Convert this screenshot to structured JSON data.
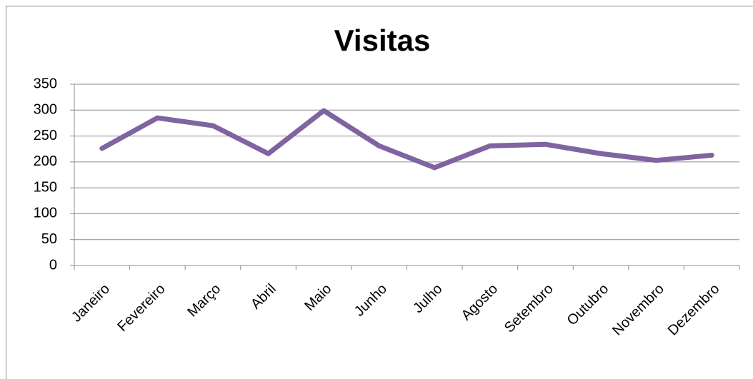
{
  "chart_data": {
    "type": "line",
    "title": "Visitas",
    "categories": [
      "Janeiro",
      "Fevereiro",
      "Março",
      "Abril",
      "Maio",
      "Junho",
      "Julho",
      "Agosto",
      "Setembro",
      "Outubro",
      "Novembro",
      "Dezembro"
    ],
    "values": [
      226,
      285,
      270,
      216,
      299,
      231,
      189,
      231,
      234,
      216,
      203,
      213
    ],
    "color": "#7f64a1",
    "ylim": [
      0,
      350
    ],
    "yticks": [
      0,
      50,
      100,
      150,
      200,
      250,
      300,
      350
    ],
    "grid": true
  }
}
